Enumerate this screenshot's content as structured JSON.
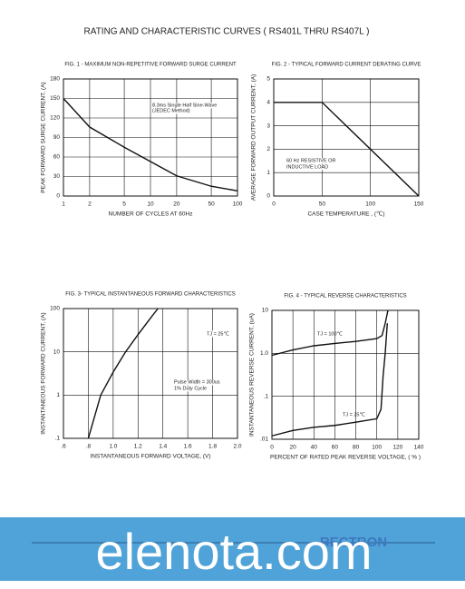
{
  "page_title": "RATING AND CHARACTERISTIC CURVES ( RS401L THRU RS407L )",
  "watermark": "elenota.com",
  "logo": "RECTRON",
  "chart_data": [
    {
      "type": "line",
      "title": "FIG. 1 - MAXIMUM NON-REPETITIVE FORWARD SURGE CURRENT",
      "x_label": "NUMBER OF CYCLES AT 60Hz",
      "y_label": "PEAK FORWARD SURGE CURRENT, (A)",
      "x_scale": "log",
      "y_scale": "linear",
      "grid": true,
      "xlim": [
        1,
        100
      ],
      "xticks": [
        1,
        2,
        5,
        10,
        20,
        50,
        100
      ],
      "ylim": [
        0,
        180
      ],
      "yticks": [
        0,
        30,
        60,
        90,
        120,
        150,
        180
      ],
      "annotations": [
        "8.3ms Single Half Sine-Wave",
        "(JEDEC Method)"
      ],
      "series": [
        {
          "color": "#111111",
          "x": [
            1,
            2,
            5,
            10,
            20,
            50,
            100
          ],
          "values": [
            150,
            106,
            75,
            53,
            31,
            15,
            8
          ]
        }
      ]
    },
    {
      "type": "line",
      "title": "FIG. 2 - TYPICAL FORWARD CURRENT DERATING CURVE",
      "x_label": "CASE TEMPERATURE , (℃)",
      "y_label": "AVERAGE FORWARD OUTPUT CURRENT, (A)",
      "x_scale": "linear",
      "y_scale": "linear",
      "grid": true,
      "xlim": [
        0,
        150
      ],
      "xticks": [
        0,
        50,
        100,
        150
      ],
      "ylim": [
        0,
        5
      ],
      "yticks": [
        0,
        1,
        2,
        3,
        4,
        5
      ],
      "annotations": [
        "60 Hz RESISTIVE OR",
        "INDUCTIVE LOAD"
      ],
      "series": [
        {
          "color": "#111111",
          "x": [
            0,
            50,
            150
          ],
          "values": [
            4,
            4,
            0
          ]
        }
      ]
    },
    {
      "type": "line",
      "title": "FIG. 3- TYPICAL INSTANTANEOUS FORWARD CHARACTERISTICS",
      "x_label": "INSTANTANEOUS FORWARD VOLTAGE, (V)",
      "y_label": "INSTANTANEOUS FORWARD CURRENT, (A)",
      "x_scale": "linear",
      "y_scale": "log",
      "grid": true,
      "xlim": [
        0.6,
        2.0
      ],
      "xticks": [
        {
          "value": 0.6,
          "label": ".6"
        },
        {
          "value": 0.8,
          "label": ".8"
        },
        {
          "value": 1,
          "label": "1.0"
        },
        1.2,
        1.4,
        1.6,
        1.8,
        {
          "value": 2,
          "label": "2.0"
        }
      ],
      "ylim": [
        0.1,
        100
      ],
      "yticks": [
        {
          "value": 0.1,
          "label": ".1"
        },
        1,
        10,
        100
      ],
      "annotations": [
        "TJ = 25℃",
        "Pulse Width = 300us",
        "1% Duty Cycle"
      ],
      "series": [
        {
          "color": "#111111",
          "x": [
            0.8,
            0.9,
            1.0,
            1.1,
            1.2,
            1.3,
            1.36
          ],
          "values": [
            0.1,
            1,
            3.4,
            10,
            25,
            60,
            100
          ]
        }
      ]
    },
    {
      "type": "line",
      "title": "FIG. 4 - TYPICAL REVERSE CHARACTERISTICS",
      "x_label": "PERCENT OF RATED PEAK REVERSE VOLTAGE, ( % )",
      "y_label": "INSTANTANEOUS REVERSE CURRENT, (uA)",
      "x_scale": "linear",
      "y_scale": "log",
      "grid": true,
      "xlim": [
        0,
        140
      ],
      "xticks": [
        0,
        20,
        40,
        60,
        80,
        100,
        120,
        140
      ],
      "ylim": [
        0.01,
        10
      ],
      "yticks": [
        {
          "value": 0.01,
          "label": ".01"
        },
        {
          "value": 0.1,
          "label": ".1"
        },
        {
          "value": 1,
          "label": "1.0"
        },
        10
      ],
      "series": [
        {
          "name": "TJ = 100℃",
          "color": "#111111",
          "x": [
            0,
            20,
            40,
            60,
            80,
            100,
            105,
            108,
            110.6
          ],
          "values": [
            0.9,
            1.2,
            1.5,
            1.7,
            1.9,
            2.2,
            2.6,
            5,
            10
          ]
        },
        {
          "name": "TJ = 25℃",
          "color": "#111111",
          "x": [
            0,
            20,
            40,
            60,
            80,
            100,
            104,
            106,
            108,
            110
          ],
          "values": [
            0.012,
            0.016,
            0.019,
            0.021,
            0.025,
            0.03,
            0.05,
            0.3,
            1,
            5
          ]
        }
      ]
    }
  ]
}
